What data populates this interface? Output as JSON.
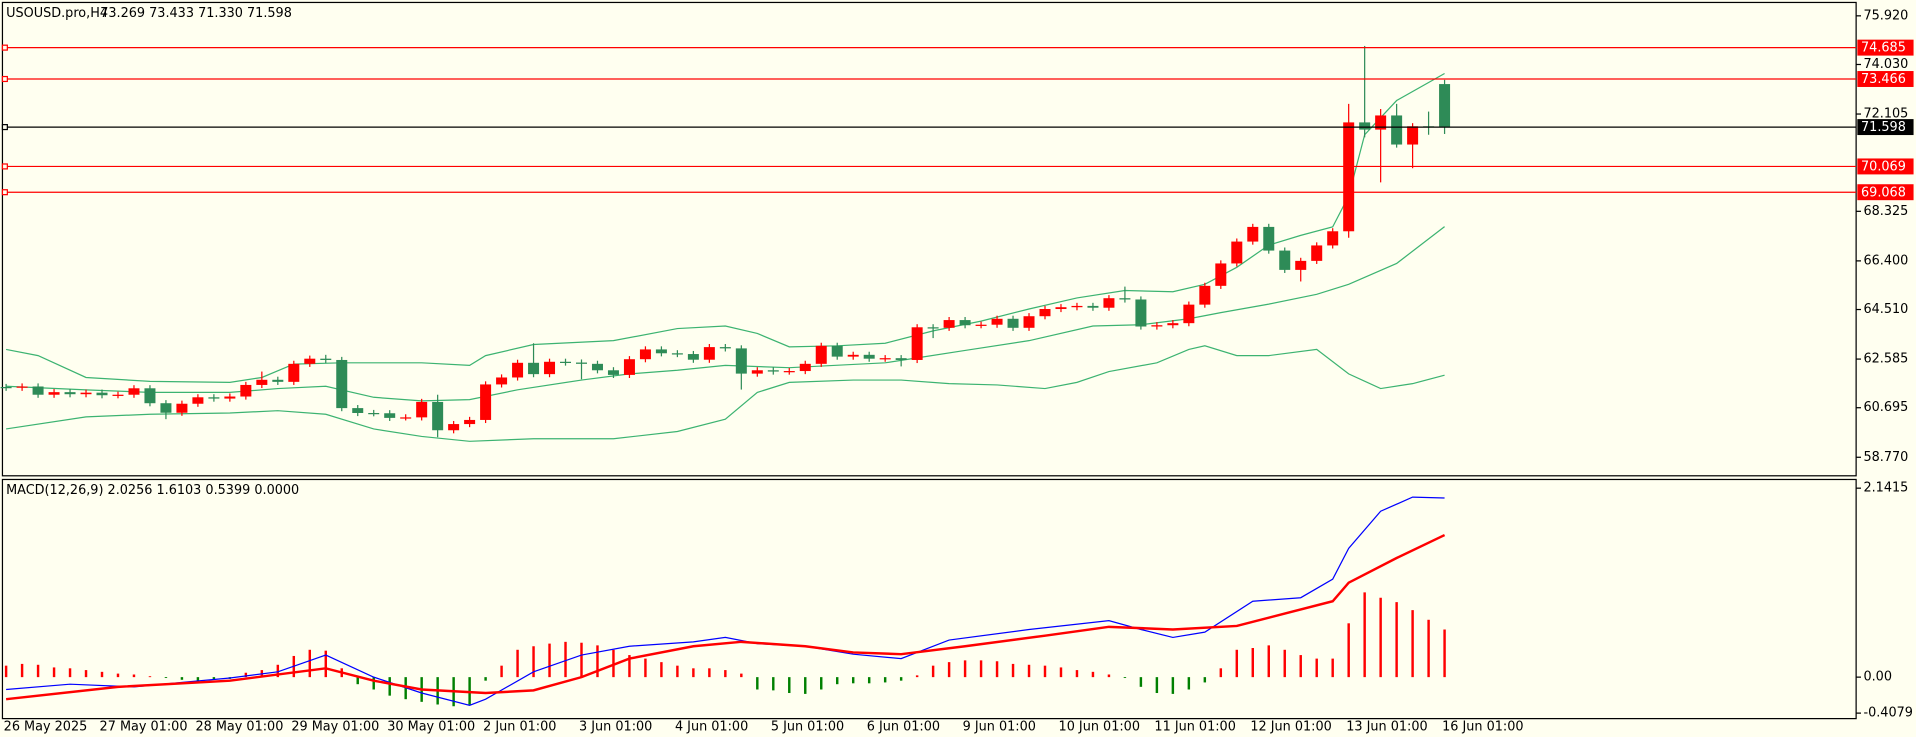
{
  "chart_data": [
    {
      "type": "candlestick",
      "title": "USOUSD.pro,H4",
      "subtitle": "73.269 73.433 71.330 71.598",
      "up_color": "#ff0000",
      "down_color": "#2e8b57",
      "categories": [
        "26 May 2025",
        null,
        null,
        null,
        null,
        null,
        "27 May 01:00",
        null,
        null,
        null,
        null,
        null,
        "28 May 01:00",
        null,
        null,
        null,
        null,
        null,
        "29 May 01:00",
        null,
        null,
        null,
        null,
        null,
        "30 May 01:00",
        null,
        null,
        null,
        null,
        null,
        "2 Jun 01:00",
        null,
        null,
        null,
        null,
        null,
        "3 Jun 01:00",
        null,
        null,
        null,
        null,
        null,
        "4 Jun 01:00",
        null,
        null,
        null,
        null,
        null,
        "5 Jun 01:00",
        null,
        null,
        null,
        null,
        null,
        "6 Jun 01:00",
        null,
        null,
        null,
        null,
        null,
        "9 Jun 01:00",
        null,
        null,
        null,
        null,
        null,
        "10 Jun 01:00",
        null,
        null,
        null,
        null,
        null,
        "11 Jun 01:00",
        null,
        null,
        null,
        null,
        null,
        "12 Jun 01:00",
        null,
        null,
        null,
        null,
        null,
        "13 Jun 01:00",
        null,
        null,
        null,
        null,
        null,
        "16 Jun 01:00"
      ],
      "open": [
        61.5,
        61.47,
        61.52,
        61.2,
        61.3,
        61.22,
        61.28,
        61.18,
        61.2,
        61.45,
        60.87,
        60.5,
        60.85,
        61.1,
        61.05,
        61.13,
        61.58,
        61.78,
        61.7,
        62.4,
        62.6,
        62.55,
        60.68,
        60.49,
        60.48,
        60.3,
        60.32,
        60.92,
        59.82,
        60.06,
        60.22,
        61.6,
        61.87,
        62.44,
        62.0,
        62.48,
        62.45,
        62.4,
        62.15,
        61.97,
        62.58,
        62.96,
        62.81,
        62.78,
        62.56,
        63.05,
        63.0,
        62.02,
        62.15,
        62.1,
        62.12,
        62.4,
        63.1,
        62.68,
        62.75,
        62.6,
        62.62,
        62.55,
        63.82,
        63.8,
        64.1,
        63.9,
        63.92,
        64.15,
        63.8,
        64.25,
        64.53,
        64.6,
        64.65,
        64.58,
        64.95,
        64.9,
        63.85,
        63.9,
        63.98,
        64.7,
        65.43,
        66.3,
        67.15,
        67.72,
        66.8,
        66.05,
        66.4,
        67.0,
        67.55,
        71.78,
        71.5,
        72.05,
        70.92,
        71.63,
        73.269
      ],
      "high": [
        61.62,
        61.64,
        61.64,
        61.42,
        61.42,
        61.4,
        61.4,
        61.32,
        61.57,
        61.57,
        60.99,
        60.97,
        61.22,
        61.22,
        61.25,
        61.7,
        62.1,
        61.9,
        62.52,
        62.72,
        62.75,
        62.67,
        60.8,
        60.61,
        60.6,
        60.44,
        61.04,
        61.2,
        60.18,
        60.34,
        61.72,
        61.99,
        62.56,
        63.2,
        62.6,
        62.6,
        62.57,
        62.52,
        62.27,
        62.7,
        63.08,
        63.08,
        62.93,
        62.9,
        63.17,
        63.17,
        63.12,
        62.27,
        62.27,
        62.24,
        62.52,
        63.22,
        63.22,
        62.87,
        62.87,
        62.74,
        62.74,
        63.94,
        63.94,
        64.22,
        64.22,
        64.04,
        64.27,
        64.27,
        64.37,
        64.65,
        64.72,
        64.77,
        64.77,
        65.07,
        65.4,
        65.02,
        64.02,
        64.1,
        64.82,
        65.55,
        66.42,
        67.27,
        67.84,
        67.84,
        66.92,
        66.52,
        67.12,
        67.67,
        72.5,
        74.75,
        72.3,
        72.5,
        71.75,
        72.2,
        73.433
      ],
      "low": [
        61.35,
        61.35,
        61.08,
        61.08,
        61.1,
        61.1,
        61.06,
        61.06,
        61.08,
        60.75,
        60.25,
        60.38,
        60.73,
        60.93,
        60.93,
        61.01,
        61.46,
        61.58,
        61.58,
        62.28,
        62.43,
        60.56,
        60.37,
        60.36,
        60.18,
        60.2,
        60.2,
        59.55,
        59.7,
        59.94,
        60.1,
        61.48,
        61.75,
        61.88,
        61.88,
        62.33,
        61.8,
        62.03,
        61.85,
        61.85,
        62.46,
        62.69,
        62.66,
        62.44,
        62.44,
        62.88,
        61.4,
        61.9,
        61.98,
        61.98,
        62.0,
        62.28,
        62.56,
        62.56,
        62.48,
        62.48,
        62.3,
        62.43,
        63.4,
        63.68,
        63.78,
        63.78,
        63.8,
        63.68,
        63.68,
        64.13,
        64.41,
        64.48,
        64.46,
        64.46,
        64.78,
        63.73,
        63.73,
        63.78,
        63.86,
        64.58,
        65.31,
        66.18,
        67.03,
        66.68,
        65.93,
        65.6,
        66.28,
        66.88,
        67.3,
        71.2,
        69.45,
        70.8,
        70.0,
        71.3,
        71.33
      ],
      "close": [
        61.47,
        61.52,
        61.2,
        61.3,
        61.22,
        61.28,
        61.18,
        61.2,
        61.45,
        60.87,
        60.5,
        60.85,
        61.1,
        61.05,
        61.13,
        61.58,
        61.78,
        61.7,
        62.4,
        62.6,
        62.55,
        60.68,
        60.49,
        60.48,
        60.3,
        60.32,
        60.92,
        59.82,
        60.06,
        60.22,
        61.6,
        61.87,
        62.44,
        62.0,
        62.48,
        62.45,
        62.4,
        62.15,
        61.97,
        62.58,
        62.96,
        62.81,
        62.78,
        62.56,
        63.05,
        63.0,
        62.02,
        62.15,
        62.1,
        62.12,
        62.4,
        63.1,
        62.68,
        62.75,
        62.6,
        62.62,
        62.55,
        63.82,
        63.8,
        64.1,
        63.9,
        63.92,
        64.15,
        63.8,
        64.25,
        64.53,
        64.6,
        64.65,
        64.58,
        64.95,
        64.9,
        63.85,
        63.9,
        63.98,
        64.7,
        65.43,
        66.3,
        67.15,
        67.72,
        66.8,
        66.05,
        66.4,
        67.0,
        67.55,
        71.78,
        71.5,
        72.05,
        70.92,
        71.63,
        71.6,
        71.598
      ],
      "overlays": [
        {
          "color": "#3cb371",
          "x": [
            0,
            2,
            5,
            9,
            14,
            16,
            18,
            21,
            26,
            29,
            30,
            33,
            38,
            42,
            45,
            47,
            49,
            52,
            55,
            58,
            61,
            64,
            67,
            70,
            73,
            75,
            77,
            79,
            81,
            83,
            84,
            85,
            87,
            90
          ],
          "values": [
            62.96,
            62.72,
            61.87,
            61.72,
            61.68,
            61.87,
            62.39,
            62.44,
            62.44,
            62.34,
            62.72,
            63.15,
            63.3,
            63.77,
            63.87,
            63.58,
            63.06,
            63.1,
            63.2,
            63.68,
            64.06,
            64.53,
            64.96,
            65.25,
            65.2,
            65.49,
            66.15,
            67.01,
            67.39,
            67.72,
            68.92,
            71.3,
            72.63,
            73.68
          ]
        },
        {
          "color": "#3cb371",
          "x": [
            0,
            5,
            9,
            14,
            17,
            20,
            23,
            26,
            29,
            32,
            36,
            39,
            42,
            45,
            49,
            55,
            57,
            60,
            64,
            68,
            71,
            74,
            76,
            79,
            82,
            84,
            87,
            90
          ],
          "values": [
            61.53,
            61.39,
            61.29,
            61.29,
            61.44,
            61.53,
            61.1,
            60.96,
            61.01,
            61.39,
            61.77,
            62.01,
            62.15,
            62.34,
            62.25,
            62.44,
            62.63,
            62.92,
            63.3,
            63.87,
            63.92,
            64.15,
            64.39,
            64.72,
            65.1,
            65.49,
            66.3,
            67.73
          ]
        },
        {
          "color": "#3cb371",
          "x": [
            0,
            5,
            9,
            14,
            17,
            20,
            23,
            26,
            29,
            33,
            38,
            42,
            45,
            47,
            49,
            53,
            56,
            59,
            62,
            65,
            67,
            69,
            72,
            74,
            75,
            77,
            79,
            82,
            84,
            86,
            88,
            90
          ],
          "values": [
            59.87,
            60.34,
            60.44,
            60.49,
            60.58,
            60.44,
            59.87,
            59.58,
            59.39,
            59.49,
            59.49,
            59.77,
            60.25,
            61.29,
            61.68,
            61.77,
            61.77,
            61.63,
            61.58,
            61.44,
            61.68,
            62.1,
            62.44,
            62.96,
            63.1,
            62.72,
            62.72,
            62.96,
            62.01,
            61.44,
            61.63,
            61.96
          ]
        }
      ],
      "levels": [
        {
          "value": 74.685,
          "color": "#ff0000"
        },
        {
          "value": 73.466,
          "color": "#ff0000"
        },
        {
          "value": 71.598,
          "color": "#000000"
        },
        {
          "value": 70.069,
          "color": "#ff0000"
        },
        {
          "value": 69.068,
          "color": "#ff0000"
        }
      ],
      "ylim": [
        58.05,
        76.44
      ],
      "yticks": [
        {
          "value": 75.92,
          "label": "75.920"
        },
        {
          "value": 74.03,
          "label": "74.030"
        },
        72.105,
        68.325,
        {
          "value": 66.4,
          "label": "66.400"
        },
        {
          "value": 64.51,
          "label": "64.510"
        },
        62.585,
        60.695,
        {
          "value": 58.77,
          "label": "58.770"
        }
      ]
    },
    {
      "type": "macd",
      "title": "MACD(12,26,9) 2.0256 1.6103 0.5399 0.0000",
      "pos_color": "#ff0000",
      "neg_color": "#008000",
      "values": [
        0.13,
        0.15,
        0.14,
        0.11,
        0.1,
        0.08,
        0.06,
        0.04,
        0.03,
        0.01,
        -0.01,
        -0.03,
        -0.04,
        -0.03,
        -0.02,
        0.05,
        0.08,
        0.14,
        0.24,
        0.31,
        0.3,
        0.1,
        -0.08,
        -0.14,
        -0.21,
        -0.25,
        -0.28,
        -0.31,
        -0.33,
        -0.31,
        -0.04,
        0.13,
        0.31,
        0.35,
        0.38,
        0.4,
        0.39,
        0.36,
        0.31,
        0.25,
        0.21,
        0.17,
        0.13,
        0.1,
        0.1,
        0.08,
        0.04,
        -0.14,
        -0.15,
        -0.18,
        -0.19,
        -0.14,
        -0.08,
        -0.07,
        -0.07,
        -0.06,
        -0.04,
        0.02,
        0.13,
        0.17,
        0.19,
        0.19,
        0.18,
        0.15,
        0.14,
        0.13,
        0.11,
        0.08,
        0.06,
        0.03,
        -0.01,
        -0.11,
        -0.18,
        -0.19,
        -0.14,
        -0.06,
        0.1,
        0.31,
        0.33,
        0.36,
        0.31,
        0.25,
        0.21,
        0.21,
        0.61,
        0.96,
        0.9,
        0.85,
        0.76,
        0.65,
        0.5399
      ],
      "lines": [
        {
          "color": "#0000ff",
          "width": 1,
          "x": [
            0,
            4,
            8,
            14,
            17,
            20,
            23,
            26,
            29,
            30,
            33,
            36,
            39,
            43,
            45,
            47,
            50,
            53,
            56,
            59,
            64,
            69,
            71,
            73,
            75,
            78,
            81,
            83,
            84,
            86,
            88,
            90
          ],
          "values": [
            -0.14,
            -0.08,
            -0.11,
            -0.01,
            0.06,
            0.25,
            0,
            -0.18,
            -0.32,
            -0.25,
            0.06,
            0.25,
            0.35,
            0.4,
            0.45,
            0.38,
            0.35,
            0.26,
            0.21,
            0.42,
            0.54,
            0.64,
            0.54,
            0.45,
            0.51,
            0.86,
            0.9,
            1.11,
            1.46,
            1.88,
            2.04,
            2.03
          ]
        },
        {
          "color": "#ff0000",
          "width": 2,
          "x": [
            0,
            7,
            14,
            20,
            23,
            26,
            30,
            33,
            36,
            39,
            43,
            46,
            50,
            53,
            56,
            60,
            65,
            69,
            73,
            77,
            80,
            83,
            84,
            87,
            90
          ],
          "values": [
            -0.25,
            -0.11,
            -0.04,
            0.1,
            -0.04,
            -0.14,
            -0.18,
            -0.15,
            0,
            0.21,
            0.35,
            0.4,
            0.35,
            0.28,
            0.26,
            0.35,
            0.47,
            0.57,
            0.54,
            0.58,
            0.72,
            0.86,
            1.07,
            1.35,
            1.61
          ]
        }
      ],
      "ylim": [
        -0.47,
        2.24
      ],
      "yticks": [
        2.1415,
        {
          "value": 0,
          "label": "0.00"
        },
        -0.4079
      ]
    }
  ]
}
